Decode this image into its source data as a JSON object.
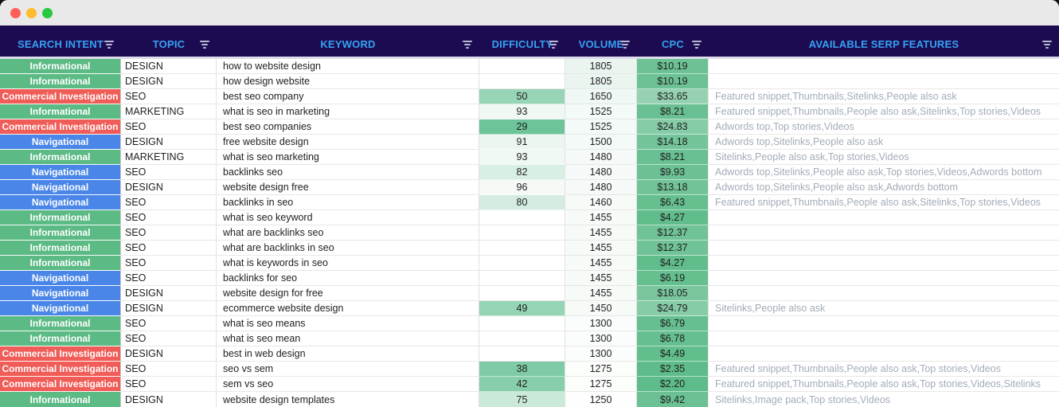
{
  "window": {
    "traffic_lights": [
      {
        "name": "close",
        "color": "#ff5f57"
      },
      {
        "name": "minimize",
        "color": "#febc2e"
      },
      {
        "name": "zoom",
        "color": "#28c840"
      }
    ],
    "titlebar_bg": "#e9e9e9"
  },
  "colors": {
    "header_bg": "#1d0b52",
    "header_text": "#34a2f2",
    "serp_text": "#a3acb9",
    "grid_line": "#e2e2e2",
    "intent": {
      "Informational": "#5cba85",
      "Commercial Investigation": "#f05c57",
      "Navigational": "#4a86e8"
    },
    "difficulty_scale": {
      "low_value_color": "#6cc498",
      "high_value_color": "#f5faf7"
    },
    "volume_scale": {
      "low_value_color": "#fdfefd",
      "high_value_color": "#eaf5f0"
    },
    "cpc_scale": {
      "low_value_color": "#5ebc8a",
      "high_value_color": "#96d2b2"
    }
  },
  "header": {
    "columns": [
      {
        "label": "SEARCH INTENT"
      },
      {
        "label": "TOPIC"
      },
      {
        "label": "KEYWORD"
      },
      {
        "label": "DIFFICULTY"
      },
      {
        "label": "VOLUME"
      },
      {
        "label": "CPC"
      },
      {
        "label": "AVAILABLE SERP FEATURES"
      }
    ]
  },
  "rows": [
    {
      "intent": "Informational",
      "topic": "DESIGN",
      "keyword": "how to website design",
      "difficulty": null,
      "volume": 1805,
      "cpc": 10.19,
      "serp": ""
    },
    {
      "intent": "Informational",
      "topic": "DESIGN",
      "keyword": "how design website",
      "difficulty": null,
      "volume": 1805,
      "cpc": 10.19,
      "serp": ""
    },
    {
      "intent": "Commercial Investigation",
      "topic": "SEO",
      "keyword": "best seo company",
      "difficulty": 50,
      "volume": 1650,
      "cpc": 33.65,
      "serp": "Featured snippet,Thumbnails,Sitelinks,People also ask"
    },
    {
      "intent": "Informational",
      "topic": "MARKETING",
      "keyword": "what is seo in marketing",
      "difficulty": 93,
      "volume": 1525,
      "cpc": 8.21,
      "serp": "Featured snippet,Thumbnails,People also ask,Sitelinks,Top stories,Videos"
    },
    {
      "intent": "Commercial Investigation",
      "topic": "SEO",
      "keyword": "best seo companies",
      "difficulty": 29,
      "volume": 1525,
      "cpc": 24.83,
      "serp": "Adwords top,Top stories,Videos"
    },
    {
      "intent": "Navigational",
      "topic": "DESIGN",
      "keyword": "free website design",
      "difficulty": 91,
      "volume": 1500,
      "cpc": 14.18,
      "serp": "Adwords top,Sitelinks,People also ask"
    },
    {
      "intent": "Informational",
      "topic": "MARKETING",
      "keyword": "what is seo marketing",
      "difficulty": 93,
      "volume": 1480,
      "cpc": 8.21,
      "serp": "Sitelinks,People also ask,Top stories,Videos"
    },
    {
      "intent": "Navigational",
      "topic": "SEO",
      "keyword": "backlinks seo",
      "difficulty": 82,
      "volume": 1480,
      "cpc": 9.93,
      "serp": "Adwords top,Sitelinks,People also ask,Top stories,Videos,Adwords bottom"
    },
    {
      "intent": "Navigational",
      "topic": "DESIGN",
      "keyword": "website design free",
      "difficulty": 96,
      "volume": 1480,
      "cpc": 13.18,
      "serp": "Adwords top,Sitelinks,People also ask,Adwords bottom"
    },
    {
      "intent": "Navigational",
      "topic": "SEO",
      "keyword": "backlinks in seo",
      "difficulty": 80,
      "volume": 1460,
      "cpc": 6.43,
      "serp": "Featured snippet,Thumbnails,People also ask,Sitelinks,Top stories,Videos"
    },
    {
      "intent": "Informational",
      "topic": "SEO",
      "keyword": "what is seo keyword",
      "difficulty": null,
      "volume": 1455,
      "cpc": 4.27,
      "serp": ""
    },
    {
      "intent": "Informational",
      "topic": "SEO",
      "keyword": "what are backlinks seo",
      "difficulty": null,
      "volume": 1455,
      "cpc": 12.37,
      "serp": ""
    },
    {
      "intent": "Informational",
      "topic": "SEO",
      "keyword": "what are backlinks in seo",
      "difficulty": null,
      "volume": 1455,
      "cpc": 12.37,
      "serp": ""
    },
    {
      "intent": "Informational",
      "topic": "SEO",
      "keyword": "what is keywords in seo",
      "difficulty": null,
      "volume": 1455,
      "cpc": 4.27,
      "serp": ""
    },
    {
      "intent": "Navigational",
      "topic": "SEO",
      "keyword": "backlinks for seo",
      "difficulty": null,
      "volume": 1455,
      "cpc": 6.19,
      "serp": ""
    },
    {
      "intent": "Navigational",
      "topic": "DESIGN",
      "keyword": "website design for free",
      "difficulty": null,
      "volume": 1455,
      "cpc": 18.05,
      "serp": ""
    },
    {
      "intent": "Navigational",
      "topic": "DESIGN",
      "keyword": "ecommerce website design",
      "difficulty": 49,
      "volume": 1450,
      "cpc": 24.79,
      "serp": "Sitelinks,People also ask"
    },
    {
      "intent": "Informational",
      "topic": "SEO",
      "keyword": "what is seo means",
      "difficulty": null,
      "volume": 1300,
      "cpc": 6.79,
      "serp": ""
    },
    {
      "intent": "Informational",
      "topic": "SEO",
      "keyword": "what is seo mean",
      "difficulty": null,
      "volume": 1300,
      "cpc": 6.78,
      "serp": ""
    },
    {
      "intent": "Commercial Investigation",
      "topic": "DESIGN",
      "keyword": "best in web design",
      "difficulty": null,
      "volume": 1300,
      "cpc": 4.49,
      "serp": ""
    },
    {
      "intent": "Commercial Investigation",
      "topic": "SEO",
      "keyword": "seo vs sem",
      "difficulty": 38,
      "volume": 1275,
      "cpc": 2.35,
      "serp": "Featured snippet,Thumbnails,People also ask,Top stories,Videos"
    },
    {
      "intent": "Commercial Investigation",
      "topic": "SEO",
      "keyword": "sem vs seo",
      "difficulty": 42,
      "volume": 1275,
      "cpc": 2.2,
      "serp": "Featured snippet,Thumbnails,People also ask,Top stories,Videos,Sitelinks"
    },
    {
      "intent": "Informational",
      "topic": "DESIGN",
      "keyword": "website design templates",
      "difficulty": 75,
      "volume": 1250,
      "cpc": 9.42,
      "serp": "Sitelinks,Image pack,Top stories,Videos"
    }
  ]
}
